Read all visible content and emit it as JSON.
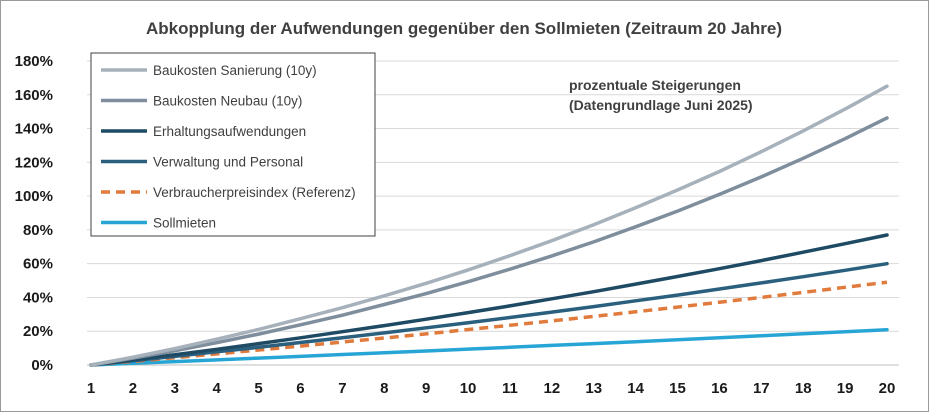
{
  "chart_data": {
    "type": "line",
    "title": "Abkopplung der Aufwendungen gegenüber den Sollmieten (Zeitraum 20 Jahre)",
    "xlabel": "",
    "ylabel": "",
    "x": [
      1,
      2,
      3,
      4,
      5,
      6,
      7,
      8,
      9,
      10,
      11,
      12,
      13,
      14,
      15,
      16,
      17,
      18,
      19,
      20
    ],
    "ylim": [
      0,
      180
    ],
    "yticks": [
      0,
      20,
      40,
      60,
      80,
      100,
      120,
      140,
      160,
      180
    ],
    "ytick_suffix": "%",
    "grid": "horizontal",
    "legend_position": "top-left",
    "annotation": [
      "prozentuale Steigerungen",
      "(Datengrundlage Juni 2025)"
    ],
    "series": [
      {
        "name": "Baukosten Sanierung (10y)",
        "color": "#a6b1bb",
        "dash": false,
        "values": [
          0,
          4.6,
          9.7,
          15.3,
          21.1,
          27.4,
          33.9,
          41.0,
          48.4,
          56.3,
          64.7,
          73.6,
          83.0,
          93.1,
          103.6,
          114.6,
          126.3,
          138.6,
          151.5,
          165.1
        ]
      },
      {
        "name": "Baukosten Neubau (10y)",
        "color": "#7f8e9d",
        "dash": false,
        "values": [
          0,
          4.0,
          8.4,
          13.2,
          18.3,
          23.8,
          29.5,
          35.8,
          42.3,
          49.3,
          56.7,
          64.6,
          72.9,
          81.8,
          91.1,
          101.0,
          111.4,
          122.4,
          134.0,
          146.3
        ]
      },
      {
        "name": "Erhaltungsaufwendungen",
        "color": "#1e4a64",
        "dash": false,
        "values": [
          0,
          3.0,
          6.1,
          9.3,
          12.7,
          16.1,
          19.7,
          23.3,
          27.1,
          31.0,
          35.0,
          39.2,
          43.4,
          47.9,
          52.4,
          57.0,
          61.8,
          66.8,
          71.8,
          77.0
        ]
      },
      {
        "name": "Verwaltung und Personal",
        "color": "#2a5f7d",
        "dash": false,
        "values": [
          0,
          2.5,
          5.1,
          7.8,
          10.5,
          13.3,
          16.1,
          19.0,
          22.0,
          25.0,
          28.1,
          31.3,
          34.6,
          38.0,
          41.4,
          45.0,
          48.6,
          52.3,
          56.1,
          60.0
        ]
      },
      {
        "name": "Verbraucherpreisindex (Referenz)",
        "color": "#e07b3d",
        "dash": true,
        "values": [
          0,
          2.1,
          4.3,
          6.6,
          8.9,
          11.2,
          13.6,
          16.0,
          18.4,
          21.0,
          23.5,
          26.1,
          28.8,
          31.5,
          34.3,
          37.2,
          40.0,
          43.0,
          46.0,
          49.0
        ]
      },
      {
        "name": "Sollmieten",
        "color": "#27a6d6",
        "dash": false,
        "values": [
          0,
          1.0,
          2.0,
          3.0,
          4.1,
          5.1,
          6.2,
          7.2,
          8.3,
          9.4,
          10.5,
          11.6,
          12.7,
          13.8,
          15.0,
          16.1,
          17.3,
          18.5,
          19.7,
          20.9
        ]
      }
    ]
  }
}
